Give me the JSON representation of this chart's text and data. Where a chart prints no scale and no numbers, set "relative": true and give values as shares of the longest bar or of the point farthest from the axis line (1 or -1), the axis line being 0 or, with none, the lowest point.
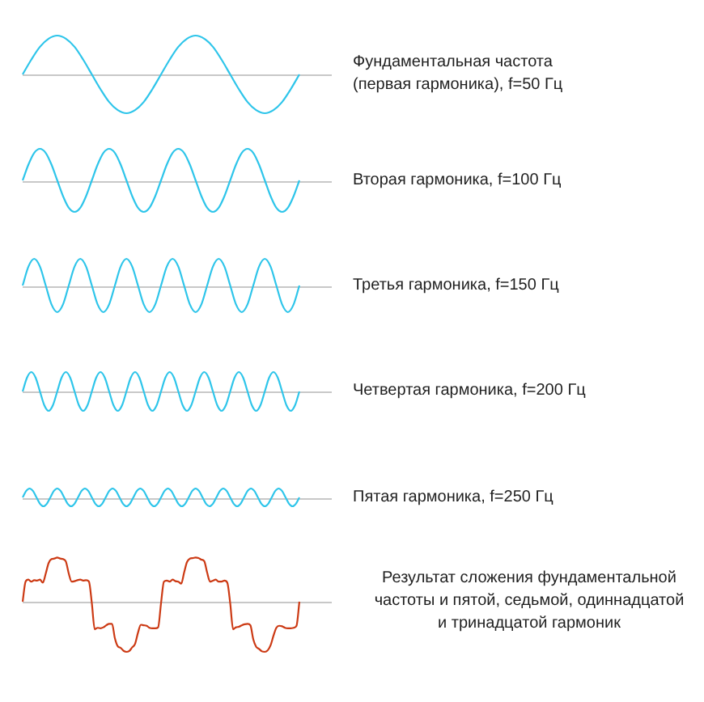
{
  "chart_data": [
    {
      "type": "line",
      "relative": true,
      "categories": [
        null,
        null,
        null,
        null,
        null,
        null,
        null,
        null,
        null,
        null,
        null,
        null,
        null,
        null,
        null,
        null,
        null,
        null,
        null,
        null,
        null,
        null,
        null,
        null,
        null,
        null,
        null,
        null,
        null,
        null,
        null,
        null,
        null
      ],
      "series": [
        {
          "name": "Фундаментальная частота (первая гармоника), f=50 Гц",
          "color": "#2ec5ea",
          "values": [
            0,
            0.38,
            0.71,
            0.92,
            1,
            0.92,
            0.71,
            0.38,
            0,
            -0.38,
            -0.71,
            -0.92,
            -1,
            -0.92,
            -0.71,
            -0.38,
            0,
            0.38,
            0.71,
            0.92,
            1,
            0.92,
            0.71,
            0.38,
            0,
            -0.38,
            -0.71,
            -0.92,
            -1,
            -0.92,
            -0.71,
            -0.38,
            0
          ]
        }
      ]
    },
    {
      "type": "line",
      "relative": true,
      "categories": [
        null,
        null,
        null,
        null,
        null,
        null,
        null,
        null,
        null,
        null,
        null,
        null,
        null,
        null,
        null,
        null,
        null,
        null,
        null,
        null,
        null,
        null,
        null,
        null,
        null,
        null,
        null,
        null,
        null,
        null,
        null,
        null,
        null,
        null,
        null,
        null,
        null,
        null,
        null,
        null,
        null,
        null,
        null,
        null,
        null,
        null,
        null,
        null,
        null
      ],
      "series": [
        {
          "name": "Вторая гармоника, f=100 Гц",
          "color": "#2ec5ea",
          "values": [
            0,
            0.5,
            0.87,
            1,
            0.87,
            0.5,
            0,
            -0.5,
            -0.87,
            -1,
            -0.87,
            -0.5,
            0,
            0.5,
            0.87,
            1,
            0.87,
            0.5,
            0,
            -0.5,
            -0.87,
            -1,
            -0.87,
            -0.5,
            0,
            0.5,
            0.87,
            1,
            0.87,
            0.5,
            0,
            -0.5,
            -0.87,
            -1,
            -0.87,
            -0.5,
            0,
            0.5,
            0.87,
            1,
            0.87,
            0.5,
            0,
            -0.5,
            -0.87,
            -1,
            -0.87,
            -0.5,
            0
          ]
        }
      ]
    },
    {
      "type": "line",
      "relative": true,
      "categories": [
        null,
        null,
        null,
        null,
        null,
        null,
        null,
        null,
        null,
        null,
        null,
        null,
        null,
        null,
        null,
        null,
        null,
        null,
        null,
        null,
        null,
        null,
        null,
        null,
        null,
        null,
        null,
        null,
        null,
        null,
        null,
        null,
        null,
        null,
        null,
        null,
        null,
        null,
        null,
        null,
        null,
        null,
        null,
        null,
        null,
        null,
        null,
        null,
        null
      ],
      "series": [
        {
          "name": "Третья гармоника, f=150 Гц",
          "color": "#2ec5ea",
          "values": [
            0,
            0.71,
            1,
            0.71,
            0,
            -0.71,
            -1,
            -0.71,
            0,
            0.71,
            1,
            0.71,
            0,
            -0.71,
            -1,
            -0.71,
            0,
            0.71,
            1,
            0.71,
            0,
            -0.71,
            -1,
            -0.71,
            0,
            0.71,
            1,
            0.71,
            0,
            -0.71,
            -1,
            -0.71,
            0,
            0.71,
            1,
            0.71,
            0,
            -0.71,
            -1,
            -0.71,
            0,
            0.71,
            1,
            0.71,
            0,
            -0.71,
            -1,
            -0.71,
            0
          ]
        }
      ]
    },
    {
      "type": "line",
      "relative": true,
      "categories": [
        null,
        null,
        null,
        null,
        null,
        null,
        null,
        null,
        null,
        null,
        null,
        null,
        null,
        null,
        null,
        null,
        null,
        null,
        null,
        null,
        null,
        null,
        null,
        null,
        null,
        null,
        null,
        null,
        null,
        null,
        null,
        null,
        null,
        null,
        null,
        null,
        null,
        null,
        null,
        null,
        null,
        null,
        null,
        null,
        null,
        null,
        null,
        null,
        null,
        null,
        null,
        null,
        null,
        null,
        null,
        null,
        null,
        null,
        null,
        null,
        null,
        null,
        null,
        null,
        null
      ],
      "series": [
        {
          "name": "Четвертая гармоника, f=200 Гц",
          "color": "#2ec5ea",
          "values": [
            0,
            0.71,
            1,
            0.71,
            0,
            -0.71,
            -1,
            -0.71,
            0,
            0.71,
            1,
            0.71,
            0,
            -0.71,
            -1,
            -0.71,
            0,
            0.71,
            1,
            0.71,
            0,
            -0.71,
            -1,
            -0.71,
            0,
            0.71,
            1,
            0.71,
            0,
            -0.71,
            -1,
            -0.71,
            0,
            0.71,
            1,
            0.71,
            0,
            -0.71,
            -1,
            -0.71,
            0,
            0.71,
            1,
            0.71,
            0,
            -0.71,
            -1,
            -0.71,
            0,
            0.71,
            1,
            0.71,
            0,
            -0.71,
            -1,
            -0.71,
            0,
            0.71,
            1,
            0.71,
            0,
            -0.71,
            -1,
            -0.71,
            0
          ]
        }
      ]
    },
    {
      "type": "line",
      "relative": true,
      "categories": [
        null,
        null,
        null,
        null,
        null,
        null,
        null,
        null,
        null,
        null,
        null,
        null,
        null,
        null,
        null,
        null,
        null,
        null,
        null,
        null,
        null,
        null,
        null,
        null,
        null,
        null,
        null,
        null,
        null,
        null,
        null,
        null,
        null,
        null,
        null,
        null,
        null,
        null,
        null,
        null,
        null,
        null,
        null,
        null,
        null,
        null,
        null,
        null,
        null,
        null,
        null,
        null,
        null,
        null,
        null,
        null,
        null,
        null,
        null,
        null,
        null,
        null,
        null,
        null,
        null,
        null,
        null,
        null,
        null,
        null,
        null,
        null,
        null,
        null,
        null,
        null,
        null,
        null,
        null,
        null,
        null
      ],
      "series": [
        {
          "name": "Пятая гармоника, f=250 Гц",
          "color": "#2ec5ea",
          "values": [
            0,
            0.71,
            1,
            0.71,
            0,
            -0.71,
            -1,
            -0.71,
            0,
            0.71,
            1,
            0.71,
            0,
            -0.71,
            -1,
            -0.71,
            0,
            0.71,
            1,
            0.71,
            0,
            -0.71,
            -1,
            -0.71,
            0,
            0.71,
            1,
            0.71,
            0,
            -0.71,
            -1,
            -0.71,
            0,
            0.71,
            1,
            0.71,
            0,
            -0.71,
            -1,
            -0.71,
            0,
            0.71,
            1,
            0.71,
            0,
            -0.71,
            -1,
            -0.71,
            0,
            0.71,
            1,
            0.71,
            0,
            -0.71,
            -1,
            -0.71,
            0,
            0.71,
            1,
            0.71,
            0,
            -0.71,
            -1,
            -0.71,
            0,
            0.71,
            1,
            0.71,
            0,
            -0.71,
            -1,
            -0.71,
            0,
            0.71,
            1,
            0.71,
            0,
            -0.71,
            -1,
            -0.71,
            0
          ]
        }
      ]
    },
    {
      "type": "line",
      "relative": true,
      "categories": [
        null,
        null,
        null,
        null,
        null,
        null,
        null,
        null,
        null,
        null,
        null,
        null,
        null,
        null,
        null,
        null,
        null,
        null,
        null,
        null,
        null,
        null,
        null,
        null,
        null,
        null,
        null,
        null,
        null,
        null,
        null,
        null,
        null,
        null,
        null,
        null,
        null,
        null,
        null,
        null,
        null,
        null,
        null,
        null,
        null,
        null,
        null,
        null,
        null,
        null,
        null,
        null,
        null,
        null,
        null,
        null,
        null,
        null,
        null,
        null,
        null,
        null,
        null,
        null,
        null,
        null,
        null,
        null,
        null,
        null,
        null,
        null,
        null,
        null,
        null,
        null,
        null,
        null,
        null,
        null,
        null,
        null,
        null,
        null,
        null,
        null,
        null,
        null,
        null,
        null,
        null,
        null,
        null,
        null,
        null,
        null,
        null
      ],
      "series": [
        {
          "name": "Результат сложения фундаментальной частоты и пятой, седьмой, одиннадцатой и тринадцатой гармоник",
          "color": "#cc3a14",
          "values": [
            0,
            0.4,
            0.44,
            0.4,
            0.43,
            0.42,
            0.44,
            0.38,
            0.56,
            0.77,
            0.85,
            0.86,
            0.88,
            0.86,
            0.85,
            0.8,
            0.56,
            0.4,
            0.41,
            0.43,
            0.44,
            0.42,
            0.43,
            0.4,
            -0.03,
            -0.55,
            -0.52,
            -0.53,
            -0.51,
            -0.47,
            -0.44,
            -0.44,
            -0.73,
            -0.89,
            -0.92,
            -0.98,
            -1,
            -0.98,
            -0.91,
            -0.84,
            -0.62,
            -0.46,
            -0.47,
            -0.48,
            -0.52,
            -0.53,
            -0.53,
            -0.51,
            -0.03,
            0.4,
            0.42,
            0.4,
            0.44,
            0.41,
            0.4,
            0.36,
            0.58,
            0.79,
            0.86,
            0.87,
            0.88,
            0.87,
            0.84,
            0.81,
            0.58,
            0.4,
            0.42,
            0.44,
            0.4,
            0.4,
            0.42,
            0.38,
            -0.03,
            -0.55,
            -0.51,
            -0.5,
            -0.47,
            -0.45,
            -0.44,
            -0.47,
            -0.75,
            -0.9,
            -0.94,
            -0.99,
            -1,
            -0.97,
            -0.87,
            -0.68,
            -0.52,
            -0.48,
            -0.49,
            -0.52,
            -0.53,
            -0.53,
            -0.52,
            -0.48,
            0
          ]
        }
      ]
    }
  ]
}
